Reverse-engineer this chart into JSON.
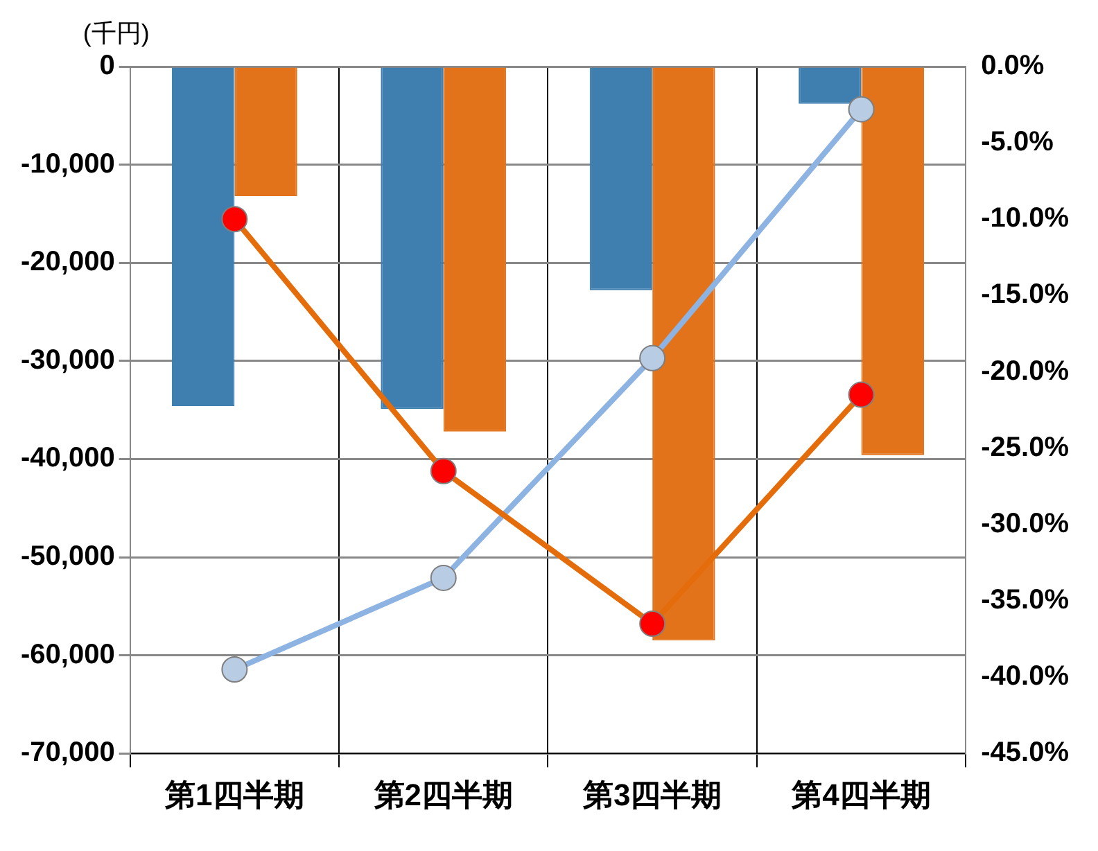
{
  "chart_data": {
    "type": "bar",
    "ylabel": "(千円)",
    "categories": [
      "第1四半期",
      "第2四半期",
      "第3四半期",
      "第4四半期"
    ],
    "series": [
      {
        "color": "#3f7fb0",
        "values": [
          -34600,
          -34900,
          -22800,
          -3800
        ]
      },
      {
        "color": "#e3731a",
        "values": [
          -13200,
          -37200,
          -58500,
          -39600
        ]
      },
      {
        "type": "line",
        "axis": "y2",
        "color": "#e46c0a",
        "colors": [
          "#ff0000",
          "#ff0000",
          "#ff0000",
          "#ff0000"
        ],
        "values": [
          -10.0,
          -26.5,
          -36.5,
          -21.5
        ]
      },
      {
        "type": "line",
        "axis": "y2",
        "color": "#8db3e2",
        "colors": [
          "#b8cce4",
          "#b8cce4",
          "#b8cce4",
          "#b8cce4"
        ],
        "values": [
          -39.5,
          -33.5,
          -19.1,
          -2.8
        ]
      }
    ],
    "ylim": [
      -70000,
      0
    ],
    "yticks": [
      {
        "value": -70000,
        "label": "-70,000"
      },
      {
        "value": -60000,
        "label": "-60,000"
      },
      {
        "value": -50000,
        "label": "-50,000"
      },
      {
        "value": -40000,
        "label": "-40,000"
      },
      {
        "value": -30000,
        "label": "-30,000"
      },
      {
        "value": -20000,
        "label": "-20,000"
      },
      {
        "value": -10000,
        "label": "-10,000"
      },
      0
    ],
    "y2lim": [
      -45,
      0
    ],
    "y2ticks": [
      {
        "value": -45,
        "label": "-45.0%"
      },
      {
        "value": -40,
        "label": "-40.0%"
      },
      {
        "value": -35,
        "label": "-35.0%"
      },
      {
        "value": -30,
        "label": "-30.0%"
      },
      {
        "value": -25,
        "label": "-25.0%"
      },
      {
        "value": -20,
        "label": "-20.0%"
      },
      {
        "value": -15,
        "label": "-15.0%"
      },
      {
        "value": -10,
        "label": "-10.0%"
      },
      {
        "value": -5,
        "label": "-5.0%"
      },
      {
        "value": 0,
        "label": "0.0%"
      }
    ],
    "grid": "y",
    "marker": "circle",
    "legend": false
  }
}
